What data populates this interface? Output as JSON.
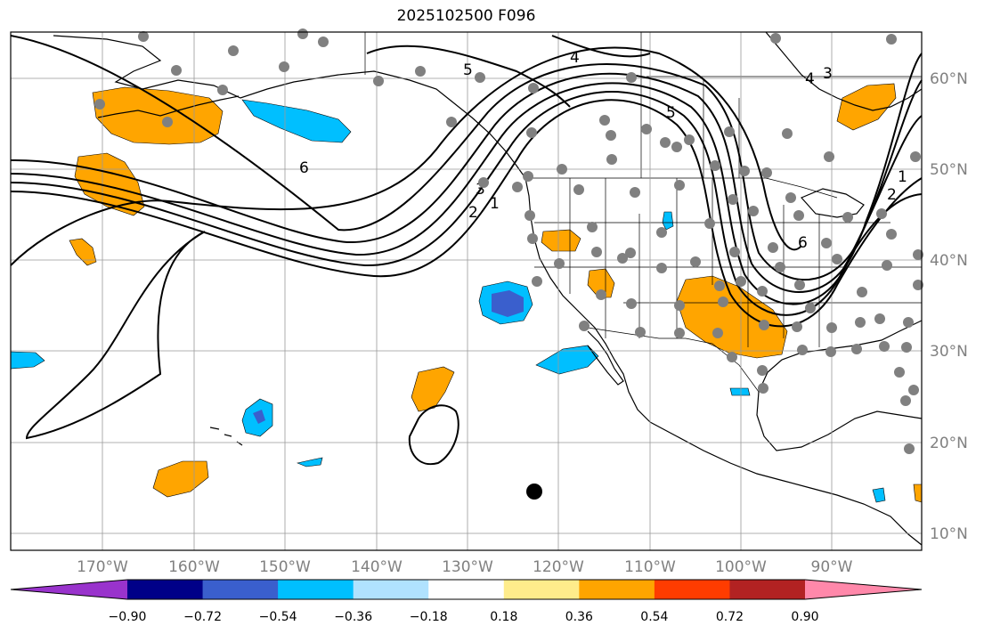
{
  "title": "2025102500 F096",
  "lat_labels": [
    "60°N",
    "50°N",
    "40°N",
    "30°N",
    "20°N",
    "10°N"
  ],
  "lon_labels": [
    "170°W",
    "160°W",
    "150°W",
    "140°W",
    "130°W",
    "120°W",
    "110°W",
    "100°W",
    "90°W"
  ],
  "colorbar": {
    "colors": [
      "#9933cc",
      "#000088",
      "#3a5fcd",
      "#00bfff",
      "#b0e2ff",
      "#ffffff",
      "#ffec8b",
      "#ffa500",
      "#ff3c00",
      "#b22222",
      "#ff88aa"
    ],
    "tick_labels": [
      "−0.90",
      "−0.72",
      "−0.54",
      "−0.36",
      "−0.18",
      "0.18",
      "0.36",
      "0.54",
      "0.72",
      "0.90"
    ]
  },
  "contour_labels": [
    "1",
    "2",
    "3",
    "4",
    "5",
    "6"
  ],
  "colors": {
    "land": "#000000",
    "grid": "#999999",
    "stations": "#808080",
    "orange": "#ffa500",
    "cyan": "#00bfff",
    "blue": "#3a5fcd"
  }
}
